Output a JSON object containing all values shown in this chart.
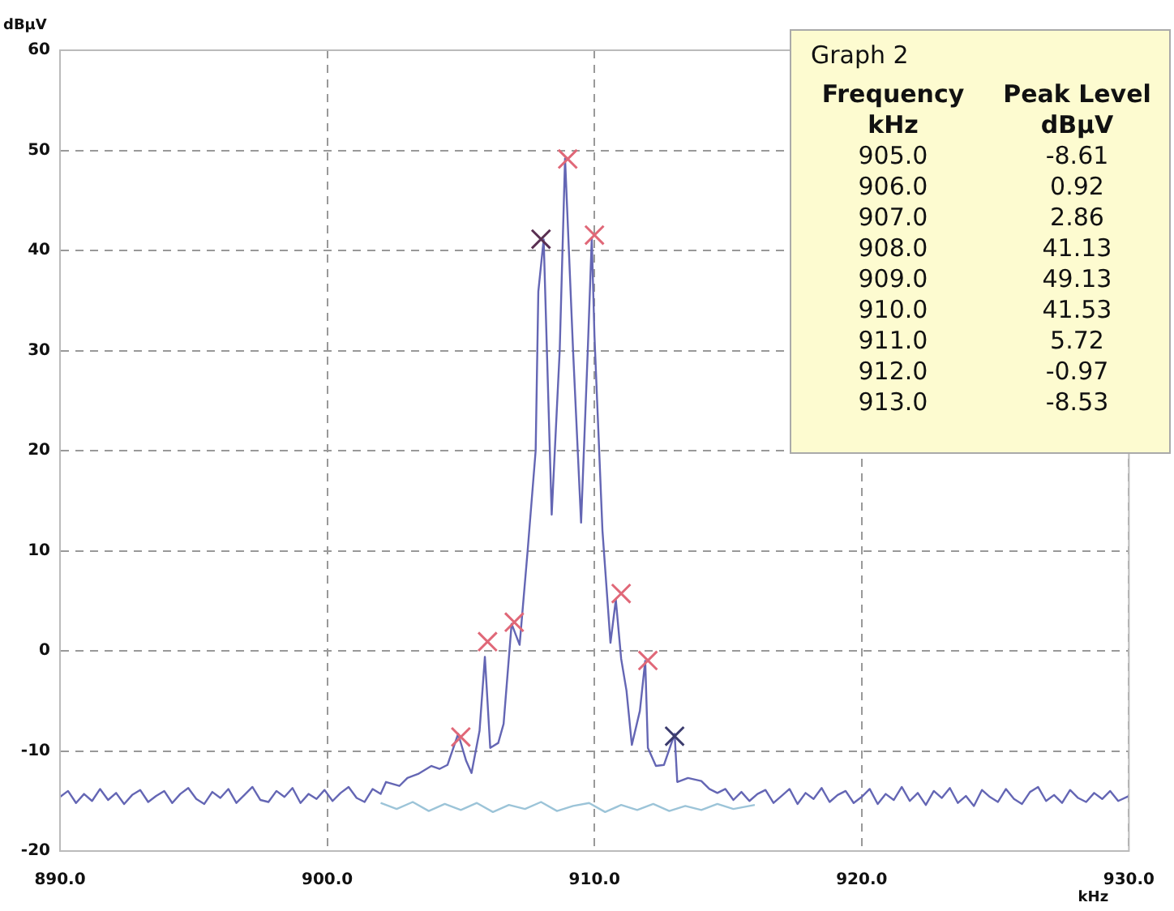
{
  "chart_data": {
    "type": "line",
    "xlabel": "kHz",
    "ylabel": "dBµV",
    "legend_title": "Graph 2",
    "annotations": [
      "Frequency kHz",
      "Peak Level dBµV",
      "905.0",
      "-8.61",
      "906.0",
      "0.92",
      "907.0",
      "2.86",
      "908.0",
      "41.13",
      "909.0",
      "49.13",
      "910.0",
      "41.53",
      "911.0",
      "5.72",
      "912.0",
      "-0.97",
      "913.0",
      "-8.53"
    ],
    "xlim": [
      890,
      930
    ],
    "ylim": [
      -20,
      60
    ],
    "xticks": [
      {
        "value": 890,
        "label": "890.0"
      },
      {
        "value": 900,
        "label": "900.0"
      },
      {
        "value": 910,
        "label": "910.0"
      },
      {
        "value": 920,
        "label": "920.0"
      },
      {
        "value": 930,
        "label": "930.0"
      }
    ],
    "yticks": [
      -20,
      -10,
      0,
      10,
      20,
      30,
      40,
      50,
      60
    ],
    "grid": true,
    "legend": false,
    "line_style": "solid",
    "marker": "none",
    "series": [
      {
        "color": "#9cc4d8",
        "x": [
          902,
          902.6,
          903.2,
          903.8,
          904.4,
          905,
          905.6,
          906.2,
          906.8,
          907.4,
          908,
          908.6,
          909.2,
          909.8,
          910.4,
          911,
          911.6,
          912.2,
          912.8,
          913.4,
          914,
          914.6,
          915.2,
          916
        ],
        "values": [
          -15.2,
          -15.8,
          -15.1,
          -16,
          -15.3,
          -15.9,
          -15.2,
          -16.1,
          -15.4,
          -15.8,
          -15.1,
          -16,
          -15.5,
          -15.2,
          -16.1,
          -15.4,
          -15.9,
          -15.3,
          -16,
          -15.5,
          -15.9,
          -15.3,
          -15.8,
          -15.4
        ]
      },
      {
        "color": "#6466b4",
        "x": [
          890,
          890.3,
          890.6,
          890.9,
          891.2,
          891.5,
          891.8,
          892.1,
          892.4,
          892.7,
          893,
          893.3,
          893.6,
          893.9,
          894.2,
          894.5,
          894.8,
          895.1,
          895.4,
          895.7,
          896,
          896.3,
          896.6,
          896.9,
          897.2,
          897.5,
          897.8,
          898.1,
          898.4,
          898.7,
          899,
          899.3,
          899.6,
          899.9,
          900.2,
          900.5,
          900.8,
          901.1,
          901.4,
          901.7,
          902,
          902.2,
          902.7,
          903,
          903.4,
          903.9,
          904.2,
          904.5,
          904.9,
          905.2,
          905.4,
          905.7,
          905.9,
          906.1,
          906.4,
          906.6,
          906.9,
          907.2,
          907.5,
          907.8,
          907.9,
          908.1,
          908.4,
          908.7,
          908.9,
          909.2,
          909.5,
          909.75,
          909.9,
          910,
          910.3,
          910.6,
          910.8,
          911,
          911.2,
          911.4,
          911.7,
          911.9,
          912,
          912.3,
          912.6,
          913,
          913.1,
          913.5,
          914,
          914.3,
          914.6,
          914.9,
          915.2,
          915.5,
          915.8,
          916.1,
          916.4,
          916.7,
          917,
          917.3,
          917.6,
          917.9,
          918.2,
          918.5,
          918.8,
          919.1,
          919.4,
          919.7,
          920,
          920.3,
          920.6,
          920.9,
          921.2,
          921.5,
          921.8,
          922.1,
          922.4,
          922.7,
          923,
          923.3,
          923.6,
          923.9,
          924.2,
          924.5,
          924.8,
          925.1,
          925.4,
          925.7,
          926,
          926.3,
          926.6,
          926.9,
          927.2,
          927.5,
          927.8,
          928.1,
          928.4,
          928.7,
          929,
          929.3,
          929.6,
          930
        ],
        "values": [
          -14.6,
          -14,
          -15.2,
          -14.3,
          -15,
          -13.8,
          -14.9,
          -14.2,
          -15.3,
          -14.4,
          -13.9,
          -15.1,
          -14.5,
          -14,
          -15.2,
          -14.3,
          -13.7,
          -14.8,
          -15.3,
          -14.1,
          -14.7,
          -13.8,
          -15.2,
          -14.4,
          -13.6,
          -14.9,
          -15.1,
          -14,
          -14.6,
          -13.7,
          -15.2,
          -14.3,
          -14.8,
          -13.9,
          -15,
          -14.2,
          -13.6,
          -14.7,
          -15.1,
          -13.8,
          -14.3,
          -13.1,
          -13.5,
          -12.7,
          -12.3,
          -11.5,
          -11.8,
          -11.4,
          -8.3,
          -11,
          -12.2,
          -8,
          -0.6,
          -9.7,
          -9.2,
          -7.3,
          2.7,
          0.6,
          10,
          20,
          35.9,
          41.1,
          13.6,
          30,
          49.2,
          30,
          12.8,
          30,
          41.2,
          31.5,
          12,
          0.8,
          5.1,
          -0.8,
          -4,
          -9.4,
          -6,
          -1,
          -9.7,
          -11.5,
          -11.4,
          -8.3,
          -13.1,
          -12.7,
          -13,
          -13.8,
          -14.2,
          -13.8,
          -14.9,
          -14.1,
          -15,
          -14.3,
          -13.9,
          -15.2,
          -14.5,
          -13.8,
          -15.3,
          -14.2,
          -14.8,
          -13.7,
          -15.1,
          -14.4,
          -14,
          -15.2,
          -14.6,
          -13.8,
          -15.3,
          -14.3,
          -14.9,
          -13.6,
          -15,
          -14.2,
          -15.4,
          -14,
          -14.7,
          -13.7,
          -15.2,
          -14.5,
          -15.5,
          -13.9,
          -14.6,
          -15.1,
          -13.8,
          -14.8,
          -15.3,
          -14.1,
          -13.6,
          -15,
          -14.4,
          -15.2,
          -13.9,
          -14.7,
          -15.1,
          -14.2,
          -14.8,
          -14,
          -15,
          -14.5
        ]
      },
      {
        "type": "scatter",
        "marker": "cross",
        "colors": [
          "#e06878",
          "#e06878",
          "#e06878",
          "#5a3052",
          "#e06878",
          "#e06878",
          "#e06878",
          "#e06878",
          "#3c3c6e"
        ],
        "x": [
          905,
          906,
          907,
          908,
          909,
          910,
          911,
          912,
          913
        ],
        "values": [
          -8.61,
          0.92,
          2.86,
          41.13,
          49.13,
          41.53,
          5.72,
          -0.97,
          -8.53
        ]
      }
    ]
  }
}
